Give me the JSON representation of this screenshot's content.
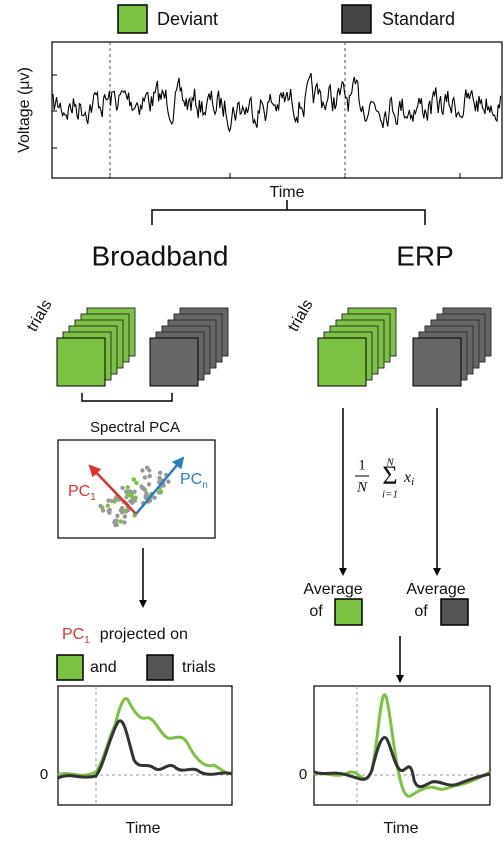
{
  "legend": {
    "deviant": "Deviant",
    "standard": "Standard"
  },
  "signal_panel": {
    "y_label": "Voltage (μv)",
    "x_label": "Time"
  },
  "broadband": {
    "title": "Broadband",
    "stack_label": "trials",
    "pca_label": "Spectral PCA",
    "pc_first": {
      "text": "PC",
      "sub": "1"
    },
    "pc_last": {
      "text": "PC",
      "sub": "n"
    },
    "projection": {
      "pc": "PC",
      "pc_sub": "1",
      "text": "projected on",
      "and": "and",
      "trials": "trials"
    },
    "plot": {
      "zero": "0",
      "x_label": "Time"
    }
  },
  "erp": {
    "title": "ERP",
    "stack_label": "trials",
    "formula": {
      "numerator": "1",
      "denominator": "N",
      "upper": "N",
      "lower": "i=1",
      "term": "x",
      "term_sub": "i"
    },
    "average_deviant": {
      "line1": "Average",
      "line2": "of"
    },
    "average_standard": {
      "line1": "Average",
      "line2": "of"
    },
    "plot": {
      "zero": "0",
      "x_label": "Time"
    }
  }
}
